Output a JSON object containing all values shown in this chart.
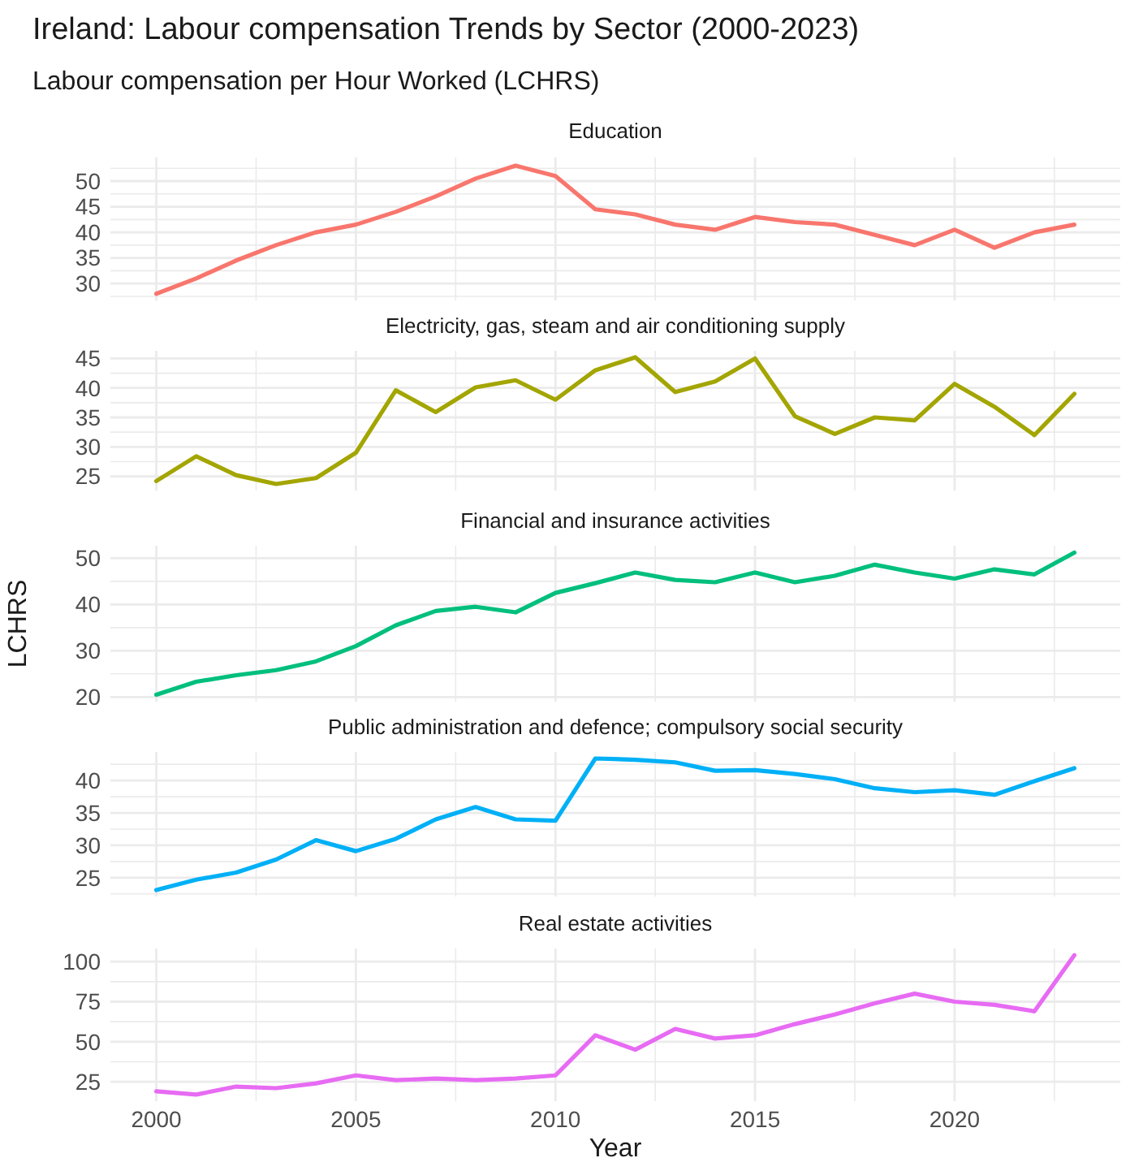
{
  "chart_data": [
    {
      "type": "line",
      "title": "Ireland: Labour compensation Trends by Sector (2000-2023)",
      "subtitle": "Labour compensation per Hour Worked (LCHRS)",
      "x": [
        2000,
        2001,
        2002,
        2003,
        2004,
        2005,
        2006,
        2007,
        2008,
        2009,
        2010,
        2011,
        2012,
        2013,
        2014,
        2015,
        2016,
        2017,
        2018,
        2019,
        2020,
        2021,
        2022,
        2023
      ],
      "series": [
        {
          "name": "Education",
          "color": "#f8766d",
          "values": [
            28,
            31,
            34.5,
            37.5,
            40,
            41.5,
            44,
            47,
            50.5,
            53,
            51,
            44.5,
            43.5,
            41.5,
            40.5,
            43,
            42,
            41.5,
            39.5,
            37.5,
            40.5,
            37,
            40,
            41.5
          ]
        }
      ],
      "xlim": [
        1998.85,
        2024.15
      ],
      "xticks": [
        2000,
        {
          "value": 2002.5,
          "label": null
        },
        2005,
        {
          "value": 2007.5,
          "label": null
        },
        2010,
        {
          "value": 2012.5,
          "label": null
        },
        2015,
        {
          "value": 2017.5,
          "label": null
        },
        2020,
        {
          "value": 2022.5,
          "label": null
        }
      ],
      "ylim": [
        26.7,
        54.6
      ],
      "yticks": [
        {
          "value": 27.5,
          "label": null
        },
        30,
        {
          "value": 32.5,
          "label": null
        },
        35,
        {
          "value": 37.5,
          "label": null
        },
        40,
        {
          "value": 42.5,
          "label": null
        },
        45,
        {
          "value": 47.5,
          "label": null
        },
        50,
        {
          "value": 52.5,
          "label": null
        }
      ],
      "grid": true,
      "tick_labels": "y"
    },
    {
      "type": "line",
      "x": [
        2000,
        2001,
        2002,
        2003,
        2004,
        2005,
        2006,
        2007,
        2008,
        2009,
        2010,
        2011,
        2012,
        2013,
        2014,
        2015,
        2016,
        2017,
        2018,
        2019,
        2020,
        2021,
        2022,
        2023
      ],
      "series": [
        {
          "name": "Electricity, gas, steam and air conditioning supply",
          "color": "#a3a500",
          "values": [
            24.2,
            28.4,
            25.2,
            23.7,
            24.7,
            29,
            39.6,
            35.9,
            40.1,
            41.3,
            38,
            43,
            45.2,
            39.3,
            41.1,
            45,
            35.2,
            32.2,
            35,
            34.5,
            40.7,
            36.8,
            32,
            39
          ]
        }
      ],
      "xlim": [
        1998.85,
        2024.15
      ],
      "xticks": [
        2000,
        {
          "value": 2002.5,
          "label": null
        },
        2005,
        {
          "value": 2007.5,
          "label": null
        },
        2010,
        {
          "value": 2012.5,
          "label": null
        },
        2015,
        {
          "value": 2017.5,
          "label": null
        },
        2020,
        {
          "value": 2022.5,
          "label": null
        }
      ],
      "ylim": [
        22.6,
        46.3
      ],
      "yticks": [
        25,
        {
          "value": 27.5,
          "label": null
        },
        30,
        {
          "value": 32.5,
          "label": null
        },
        35,
        {
          "value": 37.5,
          "label": null
        },
        40,
        {
          "value": 42.5,
          "label": null
        },
        45
      ],
      "grid": true,
      "tick_labels": "y"
    },
    {
      "type": "line",
      "ylabel": "LCHRS",
      "x": [
        2000,
        2001,
        2002,
        2003,
        2004,
        2005,
        2006,
        2007,
        2008,
        2009,
        2010,
        2011,
        2012,
        2013,
        2014,
        2015,
        2016,
        2017,
        2018,
        2019,
        2020,
        2021,
        2022,
        2023
      ],
      "series": [
        {
          "name": "Financial and insurance activities",
          "color": "#00bf7d",
          "values": [
            20.5,
            23.3,
            24.7,
            25.8,
            27.7,
            31,
            35.5,
            38.6,
            39.5,
            38.3,
            42.5,
            44.6,
            46.9,
            45.3,
            44.8,
            46.9,
            44.8,
            46.2,
            48.6,
            46.9,
            45.6,
            47.6,
            46.5,
            51.2
          ]
        }
      ],
      "xlim": [
        1998.85,
        2024.15
      ],
      "xticks": [
        2000,
        {
          "value": 2002.5,
          "label": null
        },
        2005,
        {
          "value": 2007.5,
          "label": null
        },
        2010,
        {
          "value": 2012.5,
          "label": null
        },
        2015,
        {
          "value": 2017.5,
          "label": null
        },
        2020,
        {
          "value": 2022.5,
          "label": null
        }
      ],
      "ylim": [
        19,
        52.7
      ],
      "yticks": [
        20,
        {
          "value": 25,
          "label": null
        },
        30,
        {
          "value": 35,
          "label": null
        },
        40,
        {
          "value": 45,
          "label": null
        },
        50
      ],
      "grid": true,
      "tick_labels": "y"
    },
    {
      "type": "line",
      "x": [
        2000,
        2001,
        2002,
        2003,
        2004,
        2005,
        2006,
        2007,
        2008,
        2009,
        2010,
        2011,
        2012,
        2013,
        2014,
        2015,
        2016,
        2017,
        2018,
        2019,
        2020,
        2021,
        2022,
        2023
      ],
      "series": [
        {
          "name": "Public administration and defence; compulsory social security",
          "color": "#00b0f6",
          "values": [
            23.1,
            24.7,
            25.8,
            27.8,
            30.8,
            29.1,
            31,
            34,
            35.9,
            34,
            33.8,
            43.4,
            43.2,
            42.8,
            41.5,
            41.6,
            41,
            40.2,
            38.8,
            38.2,
            38.5,
            37.8,
            39.9,
            41.9
          ]
        }
      ],
      "xlim": [
        1998.85,
        2024.15
      ],
      "xticks": [
        2000,
        {
          "value": 2002.5,
          "label": null
        },
        2005,
        {
          "value": 2007.5,
          "label": null
        },
        2010,
        {
          "value": 2012.5,
          "label": null
        },
        2015,
        {
          "value": 2017.5,
          "label": null
        },
        2020,
        {
          "value": 2022.5,
          "label": null
        }
      ],
      "ylim": [
        22.1,
        44.4
      ],
      "yticks": [
        {
          "value": 22.5,
          "label": null
        },
        25,
        {
          "value": 27.5,
          "label": null
        },
        30,
        {
          "value": 32.5,
          "label": null
        },
        35,
        {
          "value": 37.5,
          "label": null
        },
        40,
        {
          "value": 42.5,
          "label": null
        }
      ],
      "grid": true,
      "tick_labels": "y"
    },
    {
      "type": "line",
      "xlabel": "Year",
      "x": [
        2000,
        2001,
        2002,
        2003,
        2004,
        2005,
        2006,
        2007,
        2008,
        2009,
        2010,
        2011,
        2012,
        2013,
        2014,
        2015,
        2016,
        2017,
        2018,
        2019,
        2020,
        2021,
        2022,
        2023
      ],
      "series": [
        {
          "name": "Real estate activities",
          "color": "#e76bf3",
          "values": [
            19,
            17,
            22,
            21,
            24,
            29,
            26,
            27,
            26,
            27,
            29,
            54,
            45,
            58,
            52,
            54,
            61,
            67,
            74,
            80,
            75,
            73,
            69,
            104
          ]
        }
      ],
      "xlim": [
        1998.85,
        2024.15
      ],
      "xticks": [
        2000,
        {
          "value": 2002.5,
          "label": null
        },
        2005,
        {
          "value": 2007.5,
          "label": null
        },
        2010,
        {
          "value": 2012.5,
          "label": null
        },
        2015,
        {
          "value": 2017.5,
          "label": null
        },
        2020,
        {
          "value": 2022.5,
          "label": null
        }
      ],
      "ylim": [
        12.9,
        108.2
      ],
      "yticks": [
        25,
        {
          "value": 37.5,
          "label": null
        },
        50,
        {
          "value": 62.5,
          "label": null
        },
        75,
        {
          "value": 87.5,
          "label": null
        },
        100
      ],
      "grid": true
    }
  ]
}
